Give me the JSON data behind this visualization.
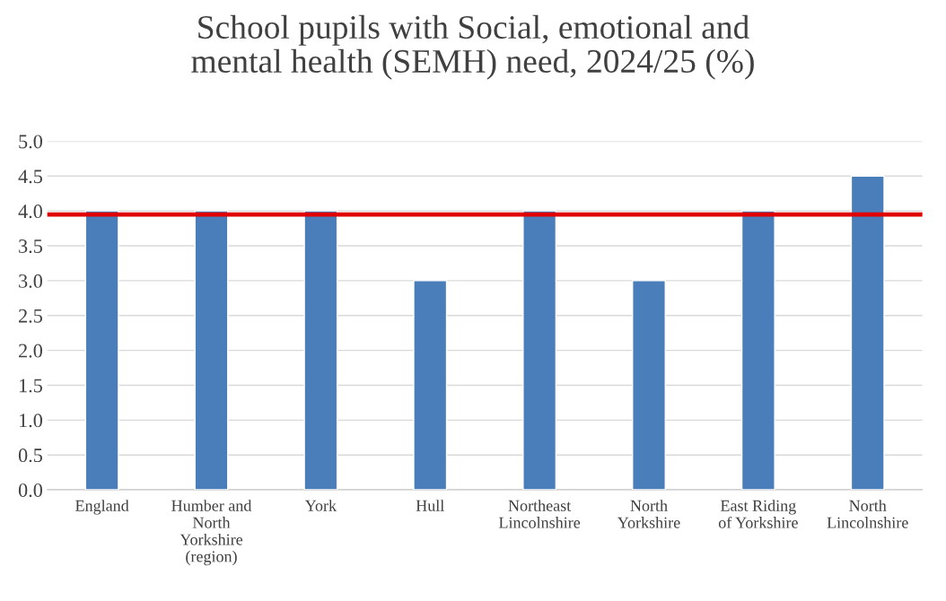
{
  "chart_data": {
    "type": "bar",
    "title": "School pupils with Social, emotional and\nmental health (SEMH) need, 2024/25 (%)",
    "categories": [
      "England",
      "Humber and\nNorth\nYorkshire\n(region)",
      "York",
      "Hull",
      "Northeast\nLincolnshire",
      "North\nYorkshire",
      "East Riding\nof Yorkshire",
      "North\nLincolnshire"
    ],
    "values": [
      4.0,
      4.0,
      4.0,
      3.0,
      4.0,
      3.0,
      4.0,
      4.5
    ],
    "color": "#4a7ebb",
    "ylim": [
      0,
      5
    ],
    "yticks": [
      {
        "value": 0,
        "label": "0.0"
      },
      {
        "value": 0.5,
        "label": "0.5"
      },
      {
        "value": 1,
        "label": "1.0"
      },
      {
        "value": 1.5,
        "label": "1.5"
      },
      {
        "value": 2,
        "label": "2.0"
      },
      {
        "value": 2.5,
        "label": "2.5"
      },
      {
        "value": 3,
        "label": "3.0"
      },
      {
        "value": 3.5,
        "label": "3.5"
      },
      {
        "value": 4,
        "label": "4.0"
      },
      {
        "value": 4.5,
        "label": "4.5"
      },
      {
        "value": 5,
        "label": "5.0"
      }
    ],
    "grid": "y",
    "ref_lines": [
      {
        "axis": "y",
        "value": 3.95,
        "color": "#e00000",
        "line_style": "solid"
      }
    ]
  }
}
